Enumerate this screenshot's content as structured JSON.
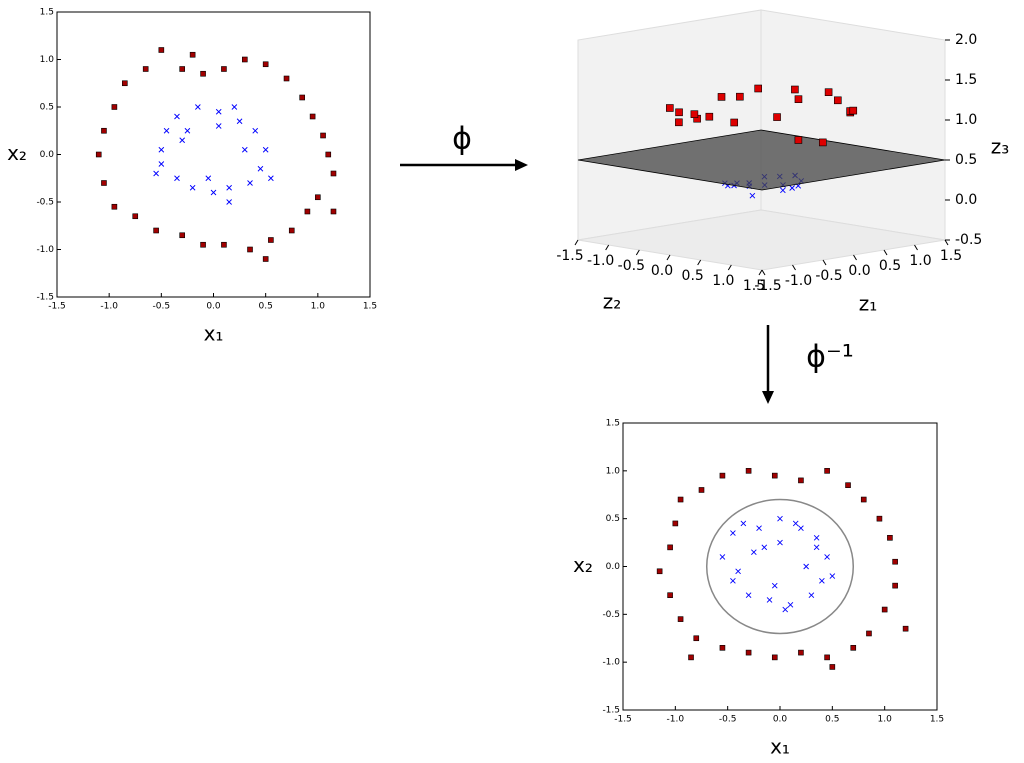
{
  "chart_data": [
    {
      "type": "scatter",
      "xlabel": "x₁",
      "ylabel": "x₂",
      "xlim": [
        -1.5,
        1.5
      ],
      "ylim": [
        -1.5,
        1.5
      ],
      "xticks": [
        -1.5,
        {
          "value": -1,
          "label": "-1.0"
        },
        -0.5,
        {
          "value": 0,
          "label": "0.0"
        },
        0.5,
        {
          "value": 1,
          "label": "1.0"
        },
        1.5
      ],
      "yticks": [
        -1.5,
        {
          "value": -1,
          "label": "-1.0"
        },
        -0.5,
        {
          "value": 0,
          "label": "0.0"
        },
        0.5,
        {
          "value": 1,
          "label": "1.0"
        },
        1.5
      ],
      "series": [
        {
          "marker": "s",
          "color": "#a00000",
          "x": [
            -0.5,
            -0.3,
            -0.1,
            0.1,
            0.3,
            0.5,
            0.7,
            0.85,
            0.95,
            1.05,
            1.1,
            1.15,
            1.0,
            0.9,
            0.75,
            0.55,
            0.35,
            0.1,
            -0.1,
            -0.3,
            -0.55,
            -0.75,
            -0.95,
            -1.05,
            -1.1,
            -1.05,
            -0.95,
            -0.85,
            -0.65,
            0.5,
            -0.2,
            1.15
          ],
          "values": [
            1.1,
            0.9,
            0.85,
            0.9,
            1.0,
            0.95,
            0.8,
            0.6,
            0.4,
            0.2,
            0.0,
            -0.2,
            -0.45,
            -0.6,
            -0.8,
            -0.9,
            -1.0,
            -0.95,
            -0.95,
            -0.85,
            -0.8,
            -0.65,
            -0.55,
            -0.3,
            0.0,
            0.25,
            0.5,
            0.75,
            0.9,
            -1.1,
            1.05,
            -0.6
          ]
        },
        {
          "marker": "x",
          "color": "#0000ff",
          "x": [
            -0.5,
            -0.45,
            -0.35,
            -0.15,
            0.05,
            0.25,
            0.4,
            0.5,
            0.45,
            0.35,
            0.15,
            0.0,
            -0.2,
            -0.35,
            -0.5,
            -0.3,
            0.3,
            0.05,
            -0.05,
            0.55,
            -0.55,
            0.2,
            -0.25,
            0.15
          ],
          "values": [
            0.05,
            0.25,
            0.4,
            0.5,
            0.45,
            0.35,
            0.25,
            0.05,
            -0.15,
            -0.3,
            -0.35,
            -0.4,
            -0.35,
            -0.25,
            -0.1,
            0.15,
            0.05,
            0.3,
            -0.25,
            -0.25,
            -0.2,
            0.5,
            0.25,
            -0.5
          ]
        }
      ]
    },
    {
      "type": "scatter3d",
      "xlabel": "z₁",
      "ylabel": "z₂",
      "zlabel": "z₃",
      "xlim": [
        -1.5,
        1.5
      ],
      "ylim": [
        -1.5,
        1.5
      ],
      "zlim": [
        -0.5,
        2.0
      ],
      "xticks": [
        -1.5,
        {
          "value": -1,
          "label": "-1.0"
        },
        -0.5,
        {
          "value": 0,
          "label": "0.0"
        },
        0.5,
        {
          "value": 1,
          "label": "1.0"
        },
        1.5
      ],
      "yticks": [
        -1.5,
        {
          "value": -1,
          "label": "-1.0"
        },
        -0.5,
        {
          "value": 0,
          "label": "0.0"
        },
        0.5,
        {
          "value": 1,
          "label": "1.0"
        },
        1.5
      ],
      "zticks": [
        -0.5,
        {
          "value": 0,
          "label": "0.0"
        },
        0.5,
        {
          "value": 1,
          "label": "1.0"
        },
        1.5,
        {
          "value": 2,
          "label": "2.0"
        }
      ],
      "plane_z": 0.5,
      "plane_color": "#444444",
      "series": [
        {
          "marker": "x",
          "color": "#0000ff",
          "x": [
            -0.5,
            -0.35,
            0.05,
            0.4,
            0.45,
            0.15,
            -0.2,
            -0.5,
            0.3,
            -0.3,
            0.5,
            0.0,
            -0.15,
            0.25,
            0.35,
            -0.45
          ],
          "y": [
            0.05,
            0.4,
            0.45,
            0.25,
            -0.15,
            -0.35,
            -0.35,
            -0.1,
            0.05,
            0.15,
            0.05,
            -0.4,
            0.5,
            0.35,
            -0.3,
            0.25
          ],
          "z": [
            0.25,
            0.28,
            0.2,
            0.22,
            0.22,
            0.15,
            0.16,
            0.26,
            0.09,
            0.11,
            0.25,
            0.16,
            0.27,
            0.19,
            0.21,
            0.26
          ]
        },
        {
          "marker": "s",
          "color": "#dd0000",
          "x": [
            -0.5,
            0.1,
            0.5,
            0.85,
            1.1,
            1.0,
            0.75,
            0.35,
            -0.1,
            -0.55,
            -0.95,
            -1.1,
            -0.95,
            -0.65,
            -0.3,
            0.7,
            1.05,
            0.1,
            -1.05,
            0.55
          ],
          "y": [
            1.1,
            0.9,
            0.95,
            0.6,
            0.0,
            -0.45,
            -0.8,
            -1.0,
            -0.95,
            -0.8,
            -0.55,
            0.0,
            0.5,
            0.9,
            0.9,
            0.8,
            0.2,
            -0.95,
            -0.3,
            -0.9
          ],
          "z": [
            1.46,
            0.82,
            1.15,
            1.08,
            1.21,
            1.2,
            1.2,
            1.12,
            0.91,
            0.94,
            1.2,
            1.21,
            1.15,
            1.23,
            0.9,
            1.13,
            1.14,
            0.91,
            1.19,
            1.11
          ]
        }
      ]
    },
    {
      "type": "scatter",
      "xlabel": "x₁",
      "ylabel": "x₂",
      "xlim": [
        -1.5,
        1.5
      ],
      "ylim": [
        -1.5,
        1.5
      ],
      "xticks": [
        -1.5,
        {
          "value": -1,
          "label": "-1.0"
        },
        -0.5,
        {
          "value": 0,
          "label": "0.0"
        },
        0.5,
        {
          "value": 1,
          "label": "1.0"
        },
        1.5
      ],
      "yticks": [
        -1.5,
        {
          "value": -1,
          "label": "-1.0"
        },
        -0.5,
        {
          "value": 0,
          "label": "0.0"
        },
        0.5,
        {
          "value": 1,
          "label": "1.0"
        },
        1.5
      ],
      "boundary_radius": 0.7,
      "boundary_color": "#888888",
      "series": [
        {
          "marker": "s",
          "color": "#a00000",
          "x": [
            -0.95,
            -0.75,
            -0.55,
            -0.3,
            -0.05,
            0.2,
            0.45,
            0.65,
            0.8,
            0.95,
            1.05,
            1.1,
            1.1,
            1.0,
            0.85,
            0.7,
            0.45,
            0.2,
            -0.05,
            -0.3,
            -0.55,
            -0.8,
            -0.95,
            -1.05,
            -1.15,
            -1.05,
            -1.0,
            0.5,
            1.2,
            -0.85
          ],
          "values": [
            0.7,
            0.8,
            0.95,
            1.0,
            0.95,
            0.9,
            1.0,
            0.85,
            0.7,
            0.5,
            0.3,
            0.05,
            -0.2,
            -0.45,
            -0.7,
            -0.85,
            -0.95,
            -0.9,
            -0.95,
            -0.9,
            -0.85,
            -0.75,
            -0.55,
            -0.3,
            -0.05,
            0.2,
            0.45,
            -1.05,
            -0.65,
            -0.95
          ]
        },
        {
          "marker": "x",
          "color": "#0000ff",
          "x": [
            -0.45,
            -0.35,
            -0.2,
            0.0,
            0.2,
            0.35,
            0.45,
            0.4,
            0.3,
            0.1,
            -0.1,
            -0.3,
            -0.45,
            -0.55,
            -0.25,
            0.25,
            0.0,
            -0.05,
            0.5,
            -0.4,
            0.15,
            -0.15,
            0.35,
            0.05
          ],
          "values": [
            0.35,
            0.45,
            0.4,
            0.5,
            0.4,
            0.3,
            0.1,
            -0.15,
            -0.3,
            -0.4,
            -0.35,
            -0.3,
            -0.15,
            0.1,
            0.15,
            0.0,
            0.25,
            -0.2,
            -0.1,
            -0.05,
            0.45,
            0.2,
            0.2,
            -0.45
          ]
        }
      ]
    }
  ],
  "annotations": [
    "ϕ",
    "ϕ⁻¹"
  ]
}
